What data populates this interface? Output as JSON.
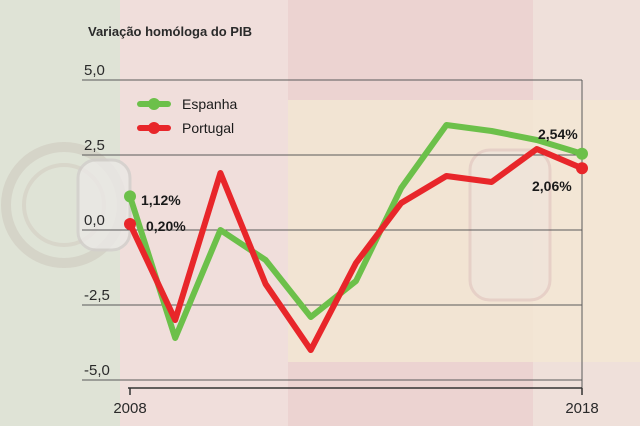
{
  "chart_data": {
    "type": "line",
    "title": "Variação homóloga do PIB",
    "xlabel": "",
    "ylabel": "",
    "x": [
      2008,
      2009,
      2010,
      2011,
      2012,
      2013,
      2014,
      2015,
      2016,
      2017,
      2018
    ],
    "x_tick_labels": [
      "2008",
      "2018"
    ],
    "ylim": [
      -5.0,
      5.0
    ],
    "y_ticks": [
      5.0,
      2.5,
      0.0,
      -2.5,
      -5.0
    ],
    "y_tick_labels": [
      "5,0",
      "2,5",
      "0,0",
      "-2,5",
      "-5,0"
    ],
    "grid": true,
    "legend_position": "top-left",
    "series": [
      {
        "name": "Espanha",
        "color": "#6cc04a",
        "values": [
          1.12,
          -3.6,
          0.0,
          -1.0,
          -2.9,
          -1.7,
          1.4,
          3.5,
          3.3,
          3.0,
          2.54
        ],
        "end_labels": [
          "1,12%",
          "2,54%"
        ]
      },
      {
        "name": "Portugal",
        "color": "#e8262a",
        "values": [
          0.2,
          -3.0,
          1.9,
          -1.8,
          -4.0,
          -1.1,
          0.9,
          1.8,
          1.6,
          2.7,
          2.06
        ],
        "end_labels": [
          "0,20%",
          "2,06%"
        ]
      }
    ]
  }
}
